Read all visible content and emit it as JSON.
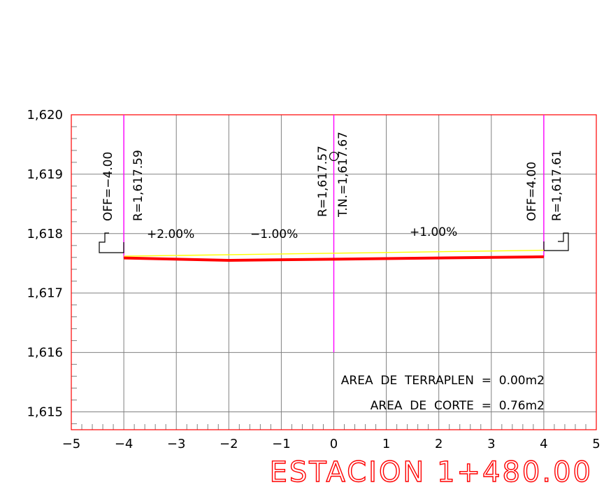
{
  "chart_data": {
    "type": "line",
    "title": "ESTACION 1+480.00",
    "xlim": [
      -5,
      5
    ],
    "ylim": [
      1614.7,
      1620
    ],
    "x_ticks": [
      "−5",
      "−4",
      "−3",
      "−2",
      "−1",
      "0",
      "1",
      "2",
      "3",
      "4",
      "5"
    ],
    "y_ticks": [
      {
        "value": 1620,
        "label": "1,620"
      },
      {
        "value": 1619,
        "label": "1,619"
      },
      {
        "value": 1618,
        "label": "1,618"
      },
      {
        "value": 1617,
        "label": "1,617"
      },
      {
        "value": 1616,
        "label": "1,616"
      },
      {
        "value": 1615,
        "label": "1,615"
      }
    ],
    "grid": true,
    "series": [
      {
        "color": "#ff0000",
        "x": [
          -4,
          -2,
          0,
          4
        ],
        "y": [
          1617.59,
          1617.55,
          1617.57,
          1617.61
        ]
      },
      {
        "color": "#ffff00",
        "x": [
          -4,
          0,
          4
        ],
        "y": [
          1617.62,
          1617.67,
          1617.72
        ]
      }
    ],
    "vertical_lines": [
      {
        "x": -4,
        "y_from": 1617.59,
        "y_to": 1620,
        "color": "#ff00ff"
      },
      {
        "x": 0,
        "y_from": 1616,
        "y_to": 1620,
        "color": "#ff00ff"
      },
      {
        "x": 4,
        "y_from": 1617.61,
        "y_to": 1620,
        "color": "#ff00ff"
      }
    ],
    "annotations": {
      "offset_left": "OFF=−4.00",
      "elev_left": "R=1,617.59",
      "elev_center": "R=1,617.57",
      "terrain_center": "T.N.=1,617.67",
      "offset_right": "OFF=4.00",
      "elev_right": "R=1,617.61",
      "slope_1": "+2.00%",
      "slope_2": "−1.00%",
      "slope_3": "+1.00%",
      "fill_area": "AREA  DE  TERRAPLEN  =  0.00m2",
      "cut_area": "AREA  DE  CORTE  =  0.76m2"
    },
    "colors": {
      "frame": "#ff0000",
      "grid": "#808080",
      "axis_text": "#000000",
      "title": "#ff0000",
      "centerline": "#ff00ff",
      "existing_ground": "#ffff00",
      "subgrade": "#ff0000"
    }
  }
}
